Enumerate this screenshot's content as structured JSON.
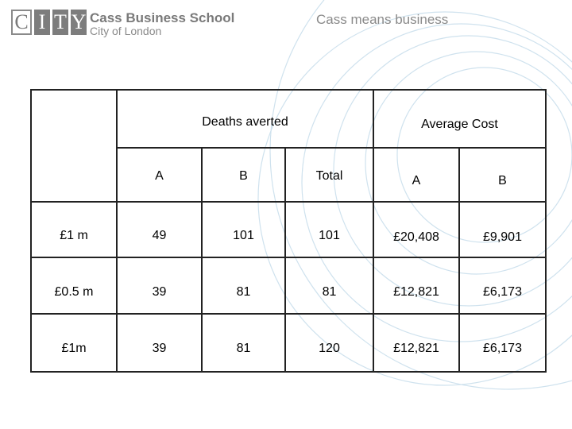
{
  "header": {
    "logo_letters": [
      "C",
      "I",
      "T",
      "Y"
    ],
    "school_name": "Cass Business School",
    "city": "City of London",
    "tagline": "Cass means business"
  },
  "table": {
    "group_headers": [
      "Deaths averted",
      "Average Cost"
    ],
    "sub_headers": [
      "A",
      "B",
      "Total",
      "A",
      "B"
    ],
    "rows": [
      {
        "label": "£1 m",
        "values": [
          "49",
          "101",
          "101",
          "£20,408",
          "£9,901"
        ]
      },
      {
        "label": "£0.5 m",
        "values": [
          "39",
          "81",
          "81",
          "£12,821",
          "£6,173"
        ]
      },
      {
        "label": "£1m",
        "values": [
          "39",
          "81",
          "120",
          "£12,821",
          "£6,173"
        ]
      }
    ]
  }
}
